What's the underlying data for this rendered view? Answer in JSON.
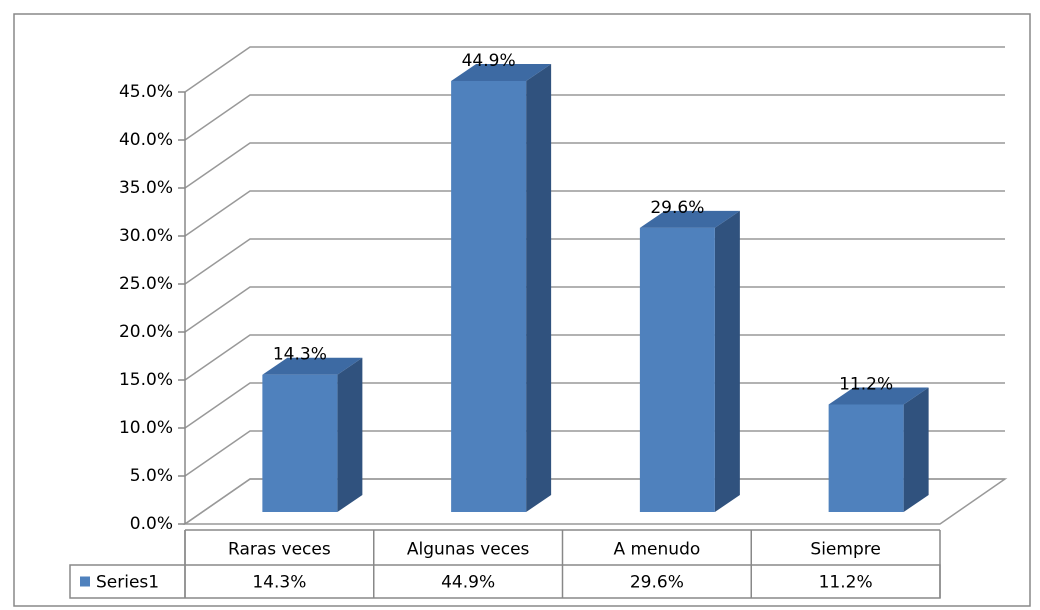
{
  "chart_data": {
    "type": "bar3d",
    "categories": [
      "Raras veces",
      "Algunas veces",
      "A menudo",
      "Siempre"
    ],
    "series": [
      {
        "name": "Series1",
        "color": "#4f81bd",
        "values": [
          14.3,
          44.9,
          29.6,
          11.2
        ],
        "value_labels": [
          "14.3%",
          "44.9%",
          "29.6%",
          "11.2%"
        ]
      }
    ],
    "ylim": [
      0,
      45
    ],
    "yticks": [
      {
        "value": 0,
        "label": "0.0%"
      },
      {
        "value": 5,
        "label": "5.0%"
      },
      {
        "value": 10,
        "label": "10.0%"
      },
      {
        "value": 15,
        "label": "15.0%"
      },
      {
        "value": 20,
        "label": "20.0%"
      },
      {
        "value": 25,
        "label": "25.0%"
      },
      {
        "value": 30,
        "label": "30.0%"
      },
      {
        "value": 35,
        "label": "35.0%"
      },
      {
        "value": 40,
        "label": "40.0%"
      },
      {
        "value": 45,
        "label": "45.0%"
      }
    ],
    "grid": true,
    "data_table": true
  }
}
